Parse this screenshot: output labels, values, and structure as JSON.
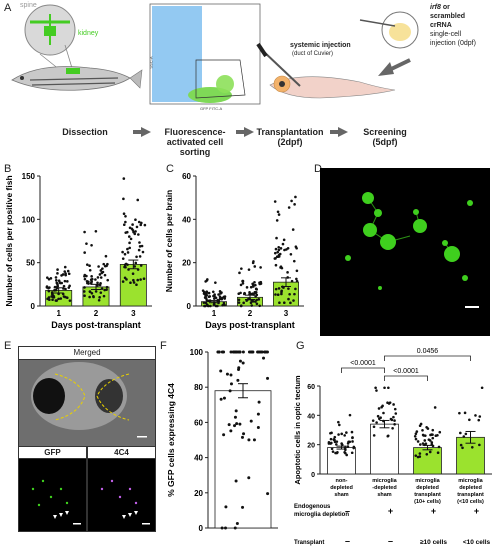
{
  "panels": {
    "A": "A",
    "B": "B",
    "C": "C",
    "D": "D",
    "E": "E",
    "F": "F",
    "G": "G"
  },
  "panelA": {
    "spine_label": "spine",
    "kidney_label": "kidney",
    "facs_ylabel": "SSC-A",
    "facs_xlabel": "GFP FITC-A",
    "injection_label": "systemic injection",
    "injection_sub": "(duct of Cuvier)",
    "crna_line1": "irf8",
    "crna_line1b": " or",
    "crna_line2": "scrambled",
    "crna_line3": "crRNA",
    "crna_line4": "single-cell",
    "crna_line5": "injection (0dpf)",
    "steps": [
      {
        "l1": "Dissection",
        "l2": "",
        "l3": ""
      },
      {
        "l1": "Fluorescence-",
        "l2": "activated cell",
        "l3": "sorting"
      },
      {
        "l1": "Transplantation",
        "l2": "(2dpf)",
        "l3": ""
      },
      {
        "l1": "Screening",
        "l2": "(5dpf)",
        "l3": ""
      }
    ]
  },
  "panelB": {
    "ylabel": "Number of cells per positive fish",
    "xlabel": "Days post-transplant",
    "chart_data": {
      "type": "bar",
      "categories": [
        "1",
        "2",
        "3"
      ],
      "values": [
        18,
        22,
        48
      ],
      "errors": [
        3,
        3,
        5
      ],
      "ylim": [
        0,
        150
      ],
      "yticks": [
        "0",
        "50",
        "100",
        "150"
      ],
      "color": "#9be22e"
    }
  },
  "panelC": {
    "ylabel": "Number of cells per brain",
    "xlabel": "Days post-transplant",
    "chart_data": {
      "type": "bar",
      "categories": [
        "1",
        "2",
        "3"
      ],
      "values": [
        2,
        4,
        11
      ],
      "errors": [
        0.5,
        1,
        2
      ],
      "ylim": [
        0,
        60
      ],
      "yticks": [
        "0",
        "20",
        "40",
        "60"
      ],
      "color": "#9be22e"
    }
  },
  "panelE": {
    "merged": "Merged",
    "gfp": "GFP",
    "c4c4": "4C4"
  },
  "panelF": {
    "ylabel": "% GFP cells expressing 4C4",
    "chart_data": {
      "type": "bar",
      "categories": [
        ""
      ],
      "values": [
        78
      ],
      "errors": [
        4
      ],
      "ylim": [
        0,
        100
      ],
      "yticks": [
        "0",
        "20",
        "40",
        "60",
        "80",
        "100"
      ],
      "color": "#ffffff"
    }
  },
  "panelG": {
    "ylabel": "Apoptotic cells in optic tectum",
    "pvals": [
      "<0.0001",
      "<0.0001",
      "0.0456"
    ],
    "cat_labels": [
      [
        "non-",
        "depleted",
        "sham"
      ],
      [
        "microglia",
        "-depleted",
        "sham"
      ],
      [
        "microglia",
        "depleted",
        "transplant",
        "(10+ cells)"
      ],
      [
        "microglia",
        "depleted",
        "transplant",
        "(<10 cells)"
      ]
    ],
    "row1_label": "Endogenous microglia depletion",
    "row1_vals": [
      "–",
      "+",
      "+",
      "+"
    ],
    "row2_label": "Transplant",
    "row2_vals": [
      "–",
      "–",
      "≥10 cells",
      "<10 cells"
    ],
    "chart_data": {
      "type": "bar",
      "categories": [
        "non-depleted sham",
        "microglia-depleted sham",
        "microglia depleted transplant (10+ cells)",
        "microglia depleted transplant (<10 cells)"
      ],
      "values": [
        18,
        34,
        18,
        25
      ],
      "errors": [
        1,
        2.5,
        1.5,
        4
      ],
      "ylim": [
        0,
        60
      ],
      "yticks": [
        "0",
        "20",
        "40",
        "60"
      ],
      "colors": [
        "#ffffff",
        "#ffffff",
        "#9be22e",
        "#9be22e"
      ]
    }
  }
}
